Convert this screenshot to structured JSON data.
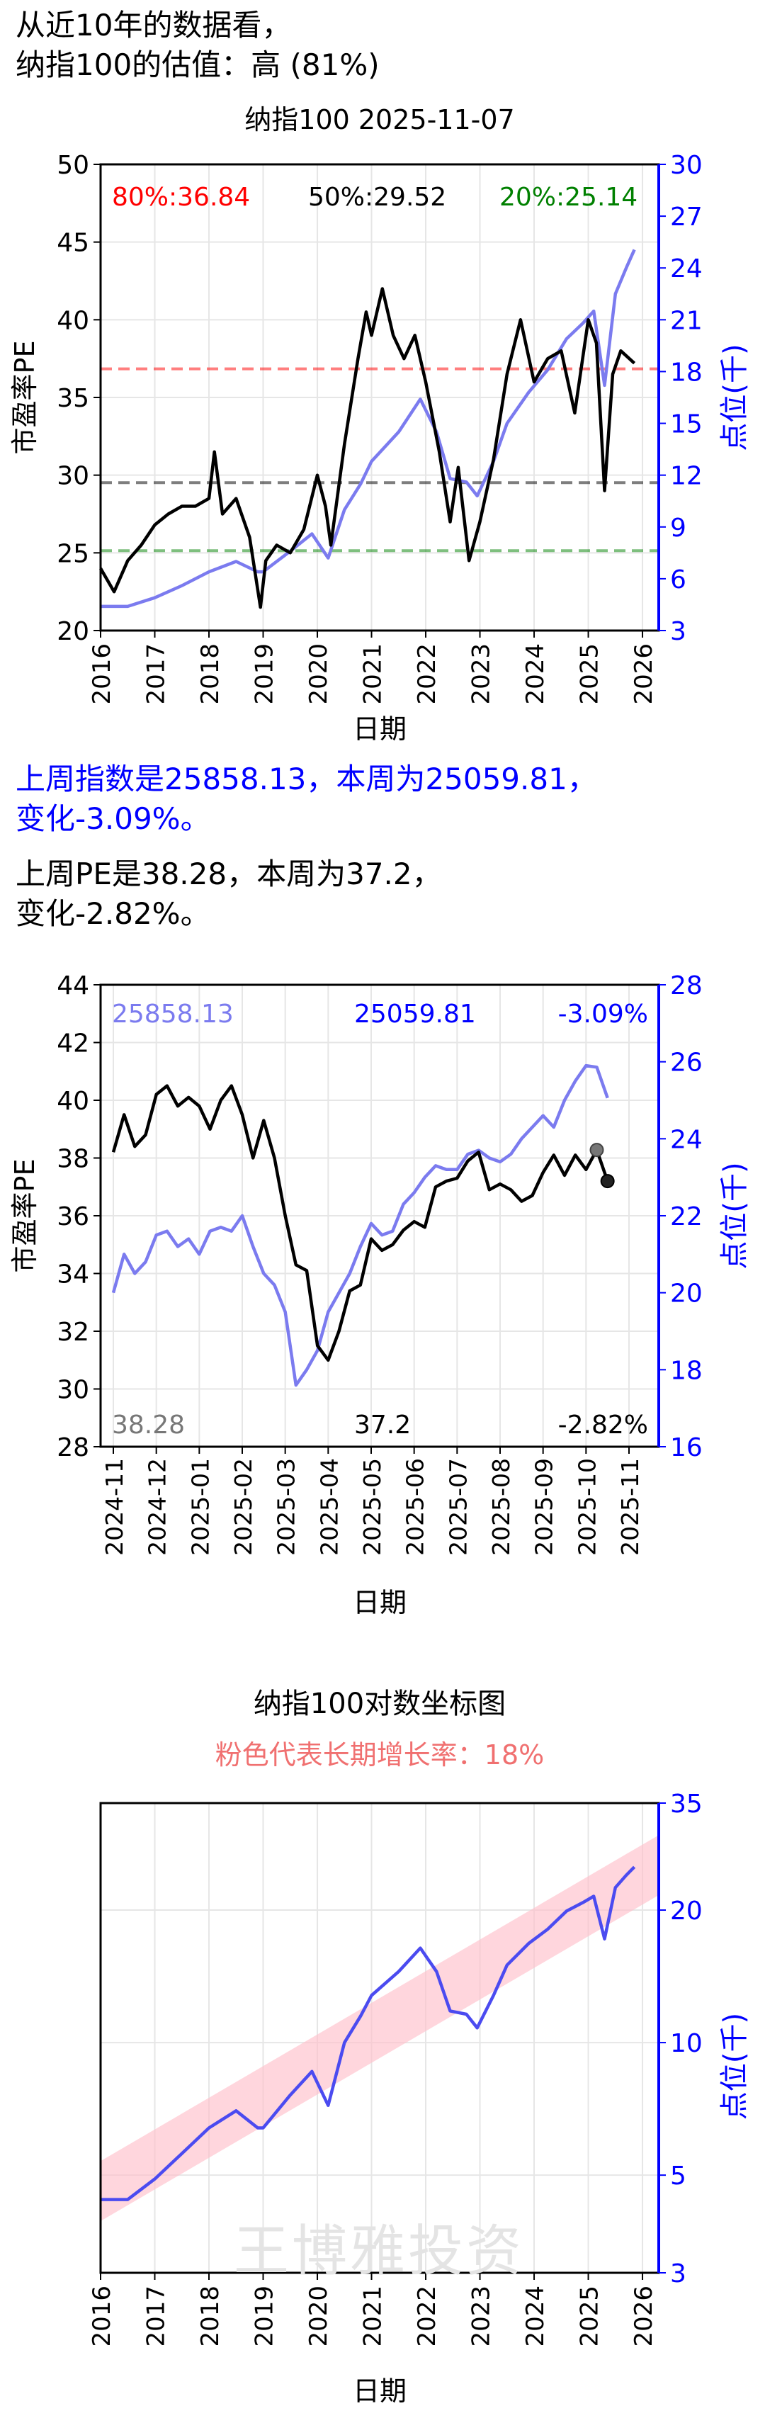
{
  "header": {
    "line1": "从近10年的数据看，",
    "line2": "纳指100的估值：高 (81%)"
  },
  "summary": {
    "index_line1": "上周指数是25858.13，本周为25059.81，",
    "index_line2": "变化-3.09%。",
    "pe_line1": "上周PE是38.28，本周为37.2，",
    "pe_line2": "变化-2.82%。"
  },
  "watermark": "王博雅投资",
  "colors": {
    "pe": "#000000",
    "index": "#7b7bef",
    "axis_right": "#0000ff",
    "p80": "#ff0000",
    "p50": "#000000",
    "p20": "#008000",
    "band": "#ffc0cb"
  },
  "chart_data": [
    {
      "type": "line",
      "title": "纳指100 2025-11-07",
      "xlabel": "日期",
      "ylabel": "市盈率PE",
      "ylabel_right": "点位(千)",
      "xticks": [
        "2016",
        "2017",
        "2018",
        "2019",
        "2020",
        "2021",
        "2022",
        "2023",
        "2024",
        "2025",
        "2026"
      ],
      "xlim": [
        2016,
        2026.3
      ],
      "ylim": [
        20,
        50
      ],
      "yticks": [
        "20",
        "25",
        "30",
        "35",
        "40",
        "45",
        "50"
      ],
      "ylim_right": [
        3,
        30
      ],
      "yticks_right": [
        "3",
        "6",
        "9",
        "12",
        "15",
        "18",
        "21",
        "24",
        "27",
        "30"
      ],
      "grid": true,
      "percentiles": [
        {
          "label": "80%:36.84",
          "value": 36.84
        },
        {
          "label": "50%:29.52",
          "value": 29.52
        },
        {
          "label": "20%:25.14",
          "value": 25.14
        }
      ],
      "series": [
        {
          "axis": "left",
          "x": [
            2016.0,
            2016.25,
            2016.5,
            2016.75,
            2017.0,
            2017.25,
            2017.5,
            2017.75,
            2018.0,
            2018.1,
            2018.25,
            2018.5,
            2018.75,
            2018.95,
            2019.05,
            2019.25,
            2019.5,
            2019.75,
            2020.0,
            2020.15,
            2020.25,
            2020.5,
            2020.75,
            2020.9,
            2021.0,
            2021.2,
            2021.4,
            2021.6,
            2021.8,
            2022.0,
            2022.25,
            2022.45,
            2022.6,
            2022.8,
            2023.0,
            2023.25,
            2023.5,
            2023.75,
            2024.0,
            2024.25,
            2024.5,
            2024.75,
            2025.0,
            2025.15,
            2025.3,
            2025.45,
            2025.6,
            2025.85
          ],
          "values": [
            24.0,
            22.5,
            24.5,
            25.5,
            26.8,
            27.5,
            28.0,
            28.0,
            28.5,
            31.5,
            27.5,
            28.5,
            26.0,
            21.5,
            24.5,
            25.5,
            25.0,
            26.5,
            30.0,
            28.0,
            25.5,
            32.0,
            37.5,
            40.5,
            39.0,
            42.0,
            39.0,
            37.5,
            39.0,
            36.0,
            31.5,
            27.0,
            30.5,
            24.5,
            27.0,
            31.0,
            36.5,
            40.0,
            36.0,
            37.5,
            38.0,
            34.0,
            40.0,
            38.5,
            29.0,
            36.5,
            38.0,
            37.2
          ]
        },
        {
          "axis": "right",
          "x": [
            2016.0,
            2016.5,
            2017.0,
            2017.5,
            2018.0,
            2018.5,
            2018.9,
            2019.0,
            2019.5,
            2019.9,
            2020.2,
            2020.5,
            2020.8,
            2021.0,
            2021.5,
            2021.9,
            2022.2,
            2022.45,
            2022.75,
            2022.95,
            2023.25,
            2023.5,
            2023.9,
            2024.25,
            2024.6,
            2024.9,
            2025.1,
            2025.3,
            2025.5,
            2025.7,
            2025.85
          ],
          "values": [
            4.4,
            4.4,
            4.9,
            5.6,
            6.4,
            7.0,
            6.4,
            6.4,
            7.6,
            8.6,
            7.2,
            10.0,
            11.5,
            12.8,
            14.5,
            16.4,
            14.5,
            11.8,
            11.6,
            10.8,
            12.8,
            15.0,
            16.8,
            18.1,
            19.9,
            20.8,
            21.5,
            17.2,
            22.5,
            24.0,
            25.06
          ]
        }
      ]
    },
    {
      "type": "line",
      "xlabel": "日期",
      "ylabel": "市盈率PE",
      "ylabel_right": "点位(千)",
      "xticks": [
        "2024-11",
        "2024-12",
        "2025-01",
        "2025-02",
        "2025-03",
        "2025-04",
        "2025-05",
        "2025-06",
        "2025-07",
        "2025-08",
        "2025-09",
        "2025-10",
        "2025-11"
      ],
      "ylim": [
        28,
        44
      ],
      "yticks": [
        "28",
        "30",
        "32",
        "34",
        "36",
        "38",
        "40",
        "42",
        "44"
      ],
      "ylim_right": [
        16,
        28
      ],
      "yticks_right": [
        "16",
        "18",
        "20",
        "22",
        "24",
        "26",
        "28"
      ],
      "grid": true,
      "labels": {
        "index_last_week": "25858.13",
        "index_this_week": "25059.81",
        "index_change": "-3.09%",
        "pe_last_week": "38.28",
        "pe_this_week": "37.2",
        "pe_change": "-2.82%"
      },
      "series": [
        {
          "axis": "left",
          "x": [
            0,
            0.25,
            0.5,
            0.75,
            1.0,
            1.25,
            1.5,
            1.75,
            2.0,
            2.25,
            2.5,
            2.75,
            3.0,
            3.25,
            3.5,
            3.75,
            4.0,
            4.25,
            4.5,
            4.75,
            5.0,
            5.25,
            5.5,
            5.75,
            6.0,
            6.25,
            6.5,
            6.75,
            7.0,
            7.25,
            7.5,
            7.75,
            8.0,
            8.25,
            8.5,
            8.75,
            9.0,
            9.25,
            9.5,
            9.75,
            10.0,
            10.25,
            10.5,
            10.75,
            11.0,
            11.25,
            11.5
          ],
          "values": [
            38.2,
            39.5,
            38.4,
            38.8,
            40.2,
            40.5,
            39.8,
            40.1,
            39.8,
            39.0,
            40.0,
            40.5,
            39.5,
            38.0,
            39.3,
            38.0,
            36.0,
            34.3,
            34.1,
            31.5,
            31.0,
            32.0,
            33.4,
            33.6,
            35.2,
            34.8,
            35.0,
            35.5,
            35.8,
            35.6,
            37.0,
            37.2,
            37.3,
            37.9,
            38.2,
            36.9,
            37.1,
            36.9,
            36.5,
            36.7,
            37.5,
            38.1,
            37.4,
            38.1,
            37.6,
            38.28,
            37.2
          ]
        },
        {
          "axis": "right",
          "x": [
            0,
            0.25,
            0.5,
            0.75,
            1.0,
            1.25,
            1.5,
            1.75,
            2.0,
            2.25,
            2.5,
            2.75,
            3.0,
            3.25,
            3.5,
            3.75,
            4.0,
            4.25,
            4.5,
            4.75,
            5.0,
            5.25,
            5.5,
            5.75,
            6.0,
            6.25,
            6.5,
            6.75,
            7.0,
            7.25,
            7.5,
            7.75,
            8.0,
            8.25,
            8.5,
            8.75,
            9.0,
            9.25,
            9.5,
            9.75,
            10.0,
            10.25,
            10.5,
            10.75,
            11.0,
            11.25,
            11.5
          ],
          "values": [
            20.0,
            21.0,
            20.5,
            20.8,
            21.5,
            21.6,
            21.2,
            21.4,
            21.0,
            21.6,
            21.7,
            21.6,
            22.0,
            21.2,
            20.5,
            20.2,
            19.5,
            17.6,
            18.0,
            18.5,
            19.5,
            20.0,
            20.5,
            21.2,
            21.8,
            21.5,
            21.6,
            22.3,
            22.6,
            23.0,
            23.3,
            23.2,
            23.2,
            23.6,
            23.7,
            23.5,
            23.4,
            23.6,
            24.0,
            24.3,
            24.6,
            24.3,
            25.0,
            25.5,
            25.9,
            25.86,
            25.06
          ]
        }
      ]
    },
    {
      "type": "line",
      "title": "纳指100对数坐标图",
      "subtitle": "粉色代表长期增长率：18%",
      "xlabel": "日期",
      "ylabel_right": "点位(千)",
      "log_scale": true,
      "xticks": [
        "2016",
        "2017",
        "2018",
        "2019",
        "2020",
        "2021",
        "2022",
        "2023",
        "2024",
        "2025",
        "2026"
      ],
      "ylim_right": [
        3,
        35
      ],
      "yticks_right": [
        "3",
        "5",
        "10",
        "20",
        "35"
      ],
      "grid": true,
      "band_growth_rate": "18%",
      "series": [
        {
          "axis": "right",
          "x": [
            2016.0,
            2016.5,
            2017.0,
            2017.5,
            2018.0,
            2018.5,
            2018.9,
            2019.0,
            2019.5,
            2019.9,
            2020.2,
            2020.5,
            2020.8,
            2021.0,
            2021.5,
            2021.9,
            2022.2,
            2022.45,
            2022.75,
            2022.95,
            2023.25,
            2023.5,
            2023.9,
            2024.25,
            2024.6,
            2024.9,
            2025.1,
            2025.3,
            2025.5,
            2025.7,
            2025.85
          ],
          "values": [
            4.4,
            4.4,
            4.9,
            5.6,
            6.4,
            7.0,
            6.4,
            6.4,
            7.6,
            8.6,
            7.2,
            10.0,
            11.5,
            12.8,
            14.5,
            16.4,
            14.5,
            11.8,
            11.6,
            10.8,
            12.8,
            15.0,
            16.8,
            18.1,
            19.9,
            20.8,
            21.5,
            17.2,
            22.5,
            24.0,
            25.06
          ]
        }
      ]
    }
  ]
}
